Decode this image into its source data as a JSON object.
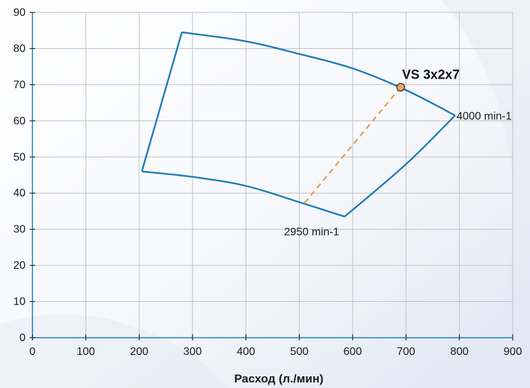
{
  "chart_data": {
    "type": "line",
    "title": "",
    "xlabel": "Расход (л./мин)",
    "ylabel": "",
    "xlim": [
      0,
      900
    ],
    "ylim": [
      0,
      90
    ],
    "x_ticks": [
      0,
      100,
      200,
      300,
      400,
      500,
      600,
      700,
      800,
      900
    ],
    "y_ticks": [
      0,
      10,
      20,
      30,
      40,
      50,
      60,
      70,
      80,
      90
    ],
    "x_tick_labels": [
      "0",
      "100",
      "200",
      "300",
      "400",
      "500",
      "600",
      "700",
      "800",
      "900"
    ],
    "y_tick_labels": [
      "0",
      "10",
      "20",
      "30",
      "40",
      "50",
      "60",
      "70",
      "80",
      "90"
    ],
    "grid": true,
    "series": [
      {
        "name": "4000 min-1",
        "color": "#1a7bb4",
        "points": [
          [
            280,
            84.5
          ],
          [
            400,
            82
          ],
          [
            500,
            78.5
          ],
          [
            600,
            74.5
          ],
          [
            700,
            68.5
          ],
          [
            792,
            61.5
          ]
        ]
      },
      {
        "name": "2950 min-1",
        "color": "#1a7bb4",
        "points": [
          [
            205,
            46
          ],
          [
            300,
            44.5
          ],
          [
            400,
            42
          ],
          [
            500,
            37.5
          ],
          [
            585,
            33.5
          ]
        ]
      },
      {
        "name": "",
        "color": "#1a7bb4",
        "points": [
          [
            205,
            46
          ],
          [
            280,
            84.5
          ]
        ]
      },
      {
        "name": "",
        "color": "#1a7bb4",
        "points": [
          [
            585,
            33.5
          ],
          [
            700,
            48
          ],
          [
            792,
            61.5
          ]
        ]
      }
    ],
    "operating_line": {
      "color": "#e8a060",
      "dashed": true,
      "points": [
        [
          510,
          37.3
        ],
        [
          690,
          69.3
        ]
      ]
    },
    "operating_point": {
      "label": "VS 3x2x7",
      "x": 690,
      "y": 69.3,
      "fill": "#f2a65a",
      "stroke": "#333333"
    },
    "annotations": [
      {
        "text": "4000 min-1",
        "x": 792,
        "y": 61.5,
        "anchor": "start"
      },
      {
        "text": "2950 min-1",
        "x": 580,
        "y": 33.5,
        "anchor": "start"
      }
    ],
    "colors": {
      "axis": "#1a7bb4",
      "grid": "#bfbfbf"
    }
  }
}
